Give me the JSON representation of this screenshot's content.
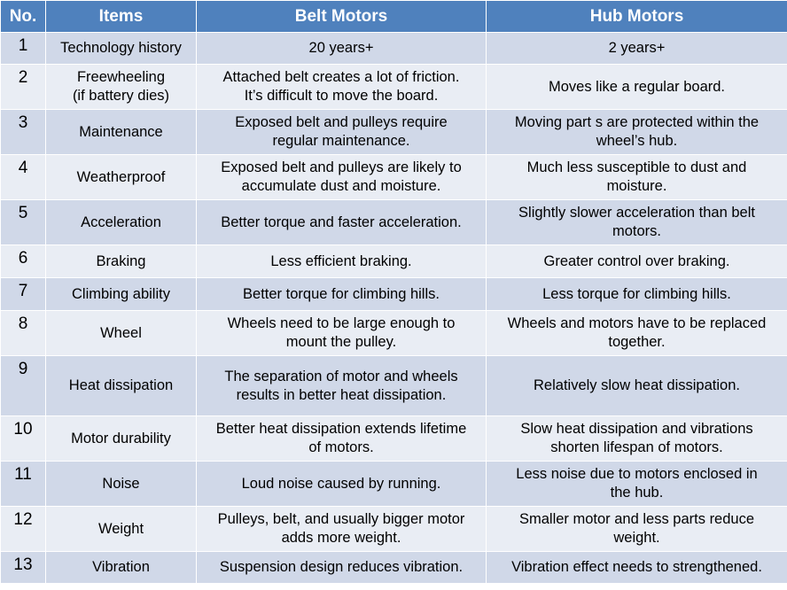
{
  "table": {
    "headers": {
      "no": "No.",
      "items": "Items",
      "belt": "Belt Motors",
      "hub": "Hub Motors"
    },
    "rows": [
      {
        "no": "1",
        "item": "Technology history",
        "belt": "20 years+",
        "hub": "2 years+"
      },
      {
        "no": "2",
        "item": "Freewheeling\n(if battery dies)",
        "belt": "Attached belt creates a lot of friction.\nIt’s difficult to move the board.",
        "hub": "Moves like a regular board."
      },
      {
        "no": "3",
        "item": "Maintenance",
        "belt": "Exposed belt and pulleys require\nregular maintenance.",
        "hub": "Moving part s are protected within the\nwheel’s hub."
      },
      {
        "no": "4",
        "item": "Weatherproof",
        "belt": "Exposed belt and pulleys are likely to\naccumulate dust and moisture.",
        "hub": "Much less susceptible to dust and\nmoisture."
      },
      {
        "no": "5",
        "item": "Acceleration",
        "belt": "Better torque and faster acceleration.",
        "hub": "Slightly slower acceleration than belt\nmotors."
      },
      {
        "no": "6",
        "item": "Braking",
        "belt": "Less efficient braking.",
        "hub": "Greater control over braking."
      },
      {
        "no": "7",
        "item": "Climbing ability",
        "belt": "Better torque for climbing hills.",
        "hub": "Less torque for climbing hills."
      },
      {
        "no": "8",
        "item": "Wheel",
        "belt": "Wheels need to be large enough to\nmount the pulley.",
        "hub": "Wheels and motors have to be replaced\ntogether."
      },
      {
        "no": "9",
        "item": "Heat dissipation",
        "belt": "The separation of motor and wheels\nresults in better heat dissipation.",
        "hub": "Relatively slow heat dissipation."
      },
      {
        "no": "10",
        "item": "Motor durability",
        "belt": "Better heat dissipation extends lifetime\nof motors.",
        "hub": "Slow heat dissipation and vibrations\nshorten lifespan of motors."
      },
      {
        "no": "11",
        "item": "Noise",
        "belt": "Loud noise caused by running.",
        "hub": "Less noise due to motors enclosed in\nthe hub."
      },
      {
        "no": "12",
        "item": "Weight",
        "belt": "Pulleys, belt, and usually bigger motor\nadds more weight.",
        "hub": "Smaller motor and less parts reduce\nweight."
      },
      {
        "no": "13",
        "item": "Vibration",
        "belt": "Suspension design reduces vibration.",
        "hub": "Vibration effect needs to strengthened."
      }
    ]
  },
  "colors": {
    "header_bg": "#4f81bd",
    "row_dark": "#d0d8e8",
    "row_light": "#e9edf4"
  }
}
